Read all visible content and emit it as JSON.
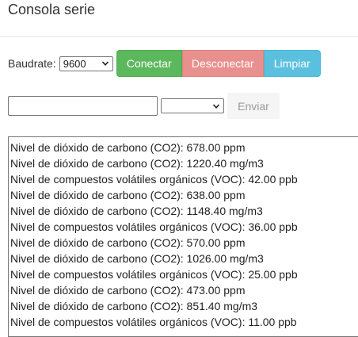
{
  "header": {
    "title": "Consola serie"
  },
  "connection": {
    "baud_label": "Baudrate:",
    "baud_value": "9600",
    "connect_label": "Conectar",
    "disconnect_label": "Desconectar",
    "clear_label": "Limpiar"
  },
  "send": {
    "input_value": "",
    "line_ending_value": "",
    "send_label": "Enviar"
  },
  "console": {
    "lines": [
      "Nivel de dióxido de carbono (CO2): 678.00 ppm",
      "Nivel de dióxido de carbono (CO2): 1220.40 mg/m3",
      "Nivel de compuestos volátiles orgánicos (VOC): 42.00 ppb",
      "Nivel de dióxido de carbono (CO2): 638.00 ppm",
      "Nivel de dióxido de carbono (CO2): 1148.40 mg/m3",
      "Nivel de compuestos volátiles orgánicos (VOC): 36.00 ppb",
      "Nivel de dióxido de carbono (CO2): 570.00 ppm",
      "Nivel de dióxido de carbono (CO2): 1026.00 mg/m3",
      "Nivel de compuestos volátiles orgánicos (VOC): 25.00 ppb",
      "Nivel de dióxido de carbono (CO2): 473.00 ppm",
      "Nivel de dióxido de carbono (CO2): 851.40 mg/m3",
      "Nivel de compuestos volátiles orgánicos (VOC): 11.00 ppb"
    ]
  },
  "colors": {
    "connect": "#5cb85c",
    "disconnect": "#e8908e",
    "clear": "#5bc0de"
  },
  "icons": {
    "select_arrow": "chevron-down-icon"
  }
}
